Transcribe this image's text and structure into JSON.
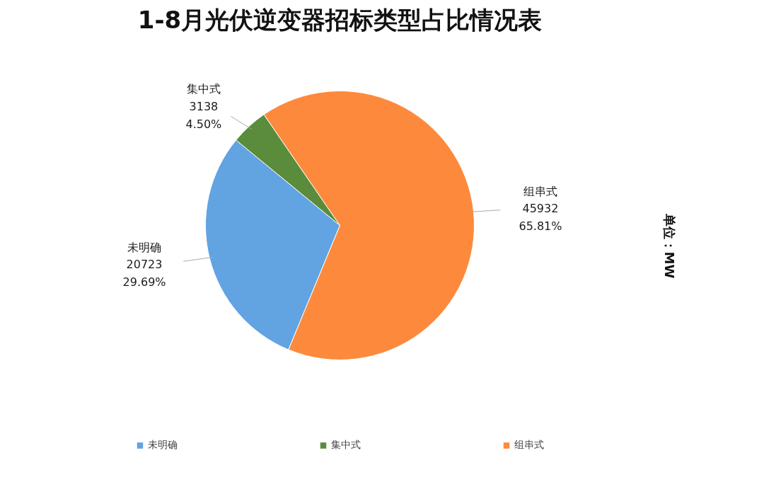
{
  "chart_data": {
    "type": "pie",
    "title": "1-8月光伏逆变器招标类型占比情况表",
    "categories": [
      "未明确",
      "集中式",
      "组串式"
    ],
    "values": [
      20723,
      3138,
      45932
    ],
    "value_labels": [
      "20723\n29.69%",
      "3138\n4.50%",
      "45932\n65.81%"
    ],
    "colors": [
      "#62a3e2",
      "#5b8c3c",
      "#fd8a3c"
    ],
    "legend": "bottom",
    "annotations": [
      "单位：MW"
    ]
  }
}
